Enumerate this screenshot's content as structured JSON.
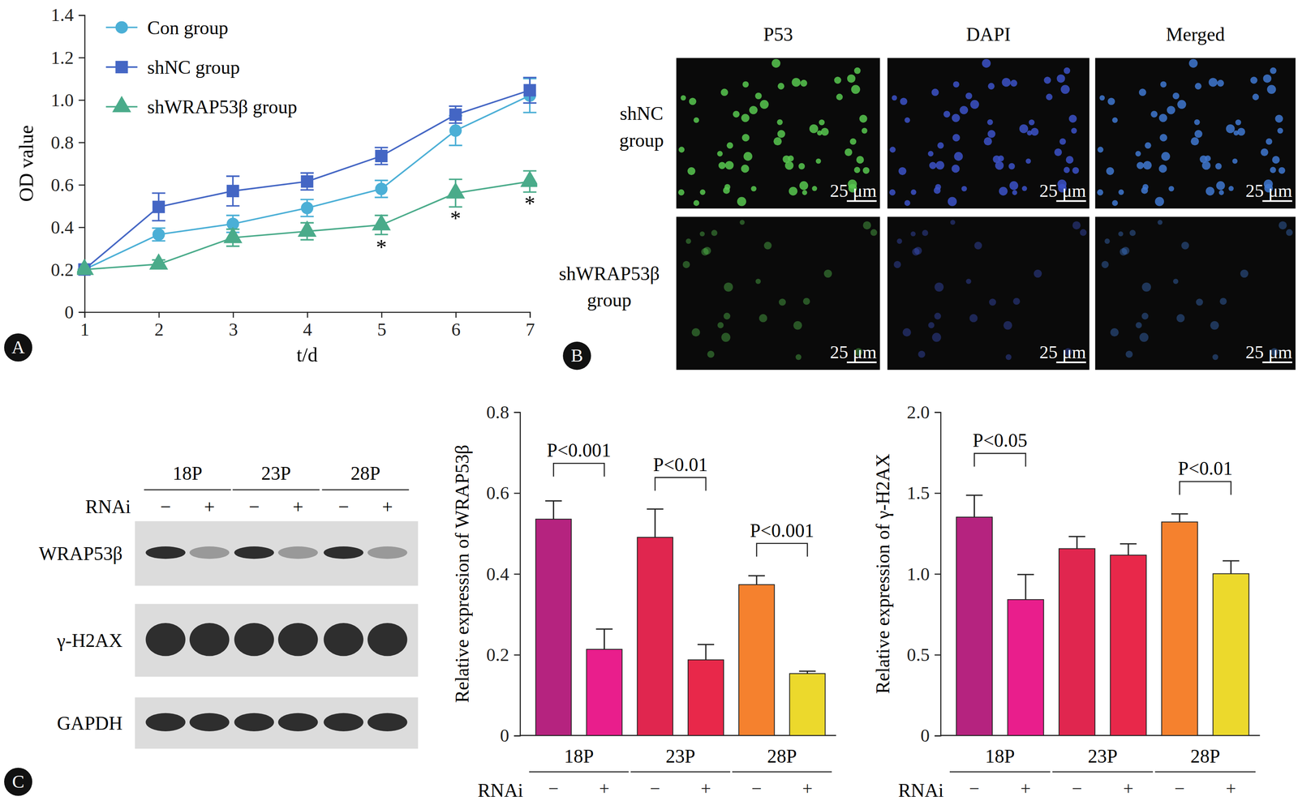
{
  "chart_data": [
    {
      "type": "line",
      "xlabel": "t/d",
      "ylabel": "OD value",
      "x": [
        1,
        2,
        3,
        4,
        5,
        6,
        7
      ],
      "xlim": [
        1,
        7
      ],
      "xticks": [
        1,
        2,
        3,
        4,
        5,
        6,
        7
      ],
      "ylim": [
        0,
        1.4
      ],
      "yticks": [
        0,
        0.2,
        0.4,
        0.6,
        0.8,
        {
          "value": 1,
          "label": "1.0"
        },
        1.2,
        1.4
      ],
      "legend": "upper left",
      "series": [
        {
          "name": "Con group",
          "color": "#4bafd6",
          "marker": "circle",
          "values": [
            0.2,
            0.365,
            0.415,
            0.49,
            0.58,
            0.855,
            1.02
          ],
          "errors": [
            0,
            0.03,
            0.04,
            0.04,
            0.04,
            0.07,
            0.08
          ]
        },
        {
          "name": "shNC group",
          "color": "#4466c4",
          "marker": "square",
          "values": [
            0.2,
            0.495,
            0.57,
            0.615,
            0.735,
            0.93,
            1.045
          ],
          "errors": [
            0,
            0.065,
            0.07,
            0.04,
            0.04,
            0.04,
            0.06
          ]
        },
        {
          "name": "shWRAP53β group",
          "color": "#4aab8a",
          "marker": "triangle",
          "values": [
            0.2,
            0.225,
            0.35,
            0.38,
            0.41,
            0.56,
            0.615
          ],
          "errors": [
            0,
            0.02,
            0.04,
            0.04,
            0.045,
            0.065,
            0.05
          ]
        }
      ],
      "annotations": [
        {
          "x": 5,
          "y": 0.31,
          "text": "*"
        },
        {
          "x": 6,
          "y": 0.445,
          "text": "*"
        },
        {
          "x": 7,
          "y": 0.515,
          "text": "*"
        }
      ]
    },
    {
      "type": "bar",
      "ylabel": "Relative expression of WRAP53β",
      "xlabel": "RNAi",
      "categories": [
        "−",
        "+",
        "−",
        "+",
        "−",
        "+"
      ],
      "groups": [
        "18P",
        "23P",
        "28P"
      ],
      "values": [
        0.535,
        0.213,
        0.49,
        0.187,
        0.373,
        0.153
      ],
      "errors": [
        0.045,
        0.05,
        0.07,
        0.038,
        0.022,
        0.006
      ],
      "colors": [
        "#b5237f",
        "#e91e8c",
        "#e0264f",
        "#e8284a",
        "#f5812e",
        "#ecd92c"
      ],
      "ylim": [
        0,
        0.8
      ],
      "yticks": [
        0,
        0.2,
        0.4,
        0.6,
        0.8
      ],
      "annotations": [
        {
          "between": [
            0,
            1
          ],
          "y": 0.673,
          "text": "P<0.001"
        },
        {
          "between": [
            2,
            3
          ],
          "y": 0.638,
          "text": "P<0.01"
        },
        {
          "between": [
            4,
            5
          ],
          "y": 0.475,
          "text": "P<0.001"
        }
      ]
    },
    {
      "type": "bar",
      "ylabel": "Relative expression of γ-H2AX",
      "xlabel": "RNAi",
      "categories": [
        "−",
        "+",
        "−",
        "+",
        "−",
        "+"
      ],
      "groups": [
        "18P",
        "23P",
        "28P"
      ],
      "values": [
        1.35,
        0.84,
        1.155,
        1.115,
        1.32,
        1.0
      ],
      "errors": [
        0.135,
        0.155,
        0.075,
        0.07,
        0.05,
        0.08
      ],
      "colors": [
        "#b5237f",
        "#e91e8c",
        "#e0264f",
        "#e8284a",
        "#f5812e",
        "#ecd92c"
      ],
      "ylim": [
        0,
        2
      ],
      "yticks": [
        0,
        0.5,
        {
          "value": 1,
          "label": "1.0"
        },
        1.5,
        {
          "value": 2,
          "label": "2.0"
        }
      ],
      "annotations": [
        {
          "between": [
            0,
            1
          ],
          "y": 1.744,
          "text": "P<0.05"
        },
        {
          "between": [
            4,
            5
          ],
          "y": 1.57,
          "text": "P<0.01"
        }
      ]
    }
  ],
  "panel_labels": [
    "A",
    "B",
    "C"
  ],
  "images": {
    "columns": [
      "P53",
      "DAPI",
      "Merged"
    ],
    "rows": [
      [
        "shNC",
        "group"
      ],
      [
        "shWRAP53β",
        "group"
      ]
    ],
    "scale_bar": "25 μm"
  },
  "blot": {
    "passages": [
      "18P",
      "23P",
      "28P"
    ],
    "rnai_label": "RNAi",
    "rnai": [
      "−",
      "+",
      "−",
      "+",
      "−",
      "+"
    ],
    "proteins": [
      "WRAP53β",
      "γ-H2AX",
      "GAPDH"
    ]
  }
}
